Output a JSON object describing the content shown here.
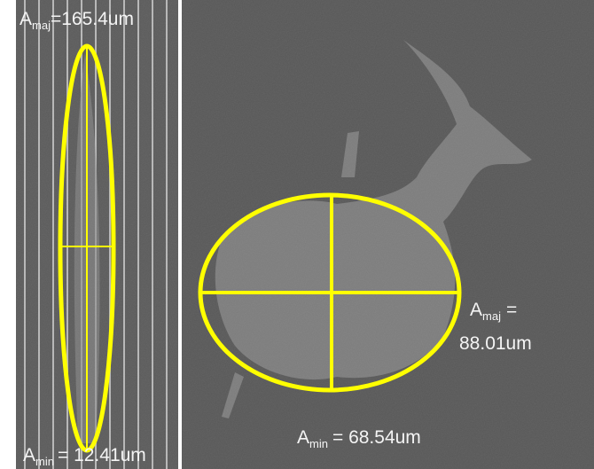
{
  "left_panel": {
    "major_label": {
      "symbol": "A",
      "subscript": "maj",
      "text": "=165.4um"
    },
    "minor_label": {
      "symbol": "A",
      "subscript": "min",
      "text": "= 12.41um"
    }
  },
  "right_panel": {
    "major_label": {
      "symbol": "A",
      "subscript": "maj",
      "text": "=",
      "line2": "88.01um"
    },
    "minor_label": {
      "symbol": "A",
      "subscript": "min",
      "text": "= 68.54um"
    }
  }
}
